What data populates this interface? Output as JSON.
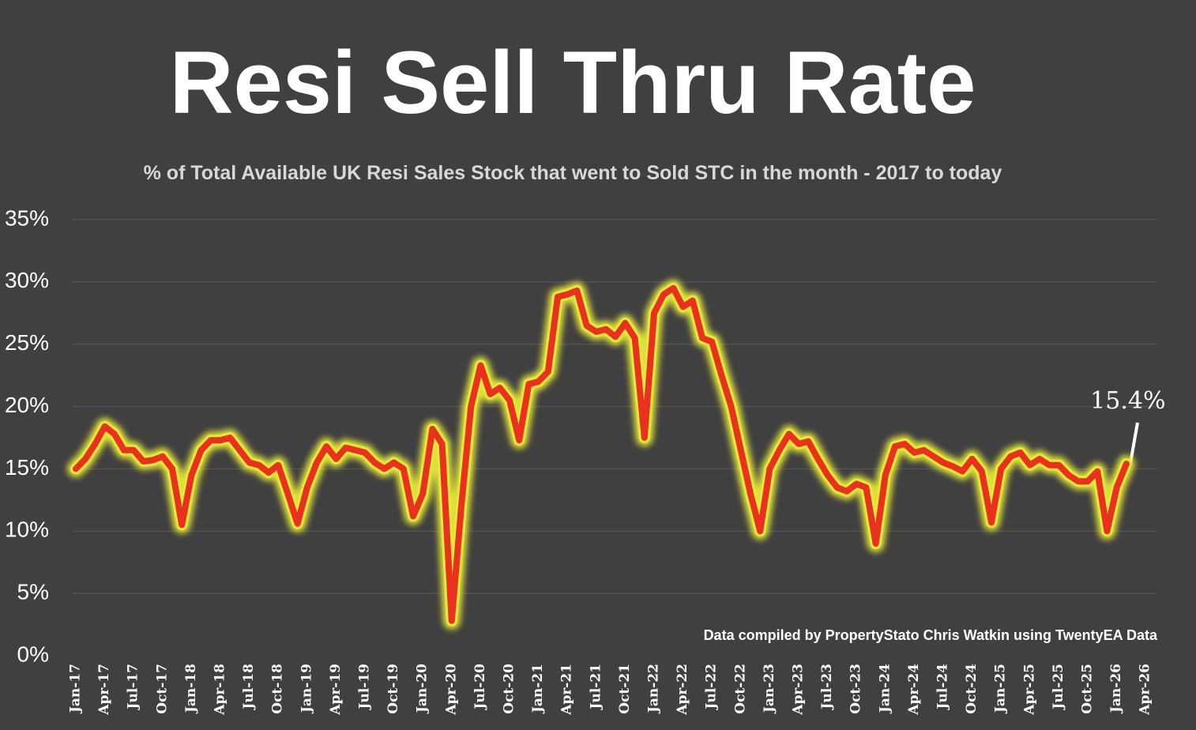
{
  "chart_data": {
    "type": "line",
    "title": "Resi Sell Thru Rate",
    "subtitle": "% of Total Available UK Resi Sales Stock that went to Sold STC in the month - 2017 to today",
    "source": "Data compiled by PropertyStato Chris Watkin using TwentyEA Data",
    "categories": [
      "Jan-17",
      null,
      null,
      "Apr-17",
      null,
      null,
      "Jul-17",
      null,
      null,
      "Oct-17",
      null,
      null,
      "Jan-18",
      null,
      null,
      "Apr-18",
      null,
      null,
      "Jul-18",
      null,
      null,
      "Oct-18",
      null,
      null,
      "Jan-19",
      null,
      null,
      "Apr-19",
      null,
      null,
      "Jul-19",
      null,
      null,
      "Oct-19",
      null,
      null,
      "Jan-20",
      null,
      null,
      "Apr-20",
      null,
      null,
      "Jul-20",
      null,
      null,
      "Oct-20",
      null,
      null,
      "Jan-21",
      null,
      null,
      "Apr-21",
      null,
      null,
      "Jul-21",
      null,
      null,
      "Oct-21",
      null,
      null,
      "Jan-22",
      null,
      null,
      "Apr-22",
      null,
      null,
      "Jul-22",
      null,
      null,
      "Oct-22",
      null,
      null,
      "Jan-23",
      null,
      null,
      "Apr-23",
      null,
      null,
      "Jul-23",
      null,
      null,
      "Oct-23",
      null,
      null,
      "Jan-24",
      null,
      null,
      "Apr-24",
      null,
      null,
      "Jul-24",
      null,
      null,
      "Oct-24",
      null,
      null,
      "Jan-25",
      null,
      null,
      "Apr-25",
      null,
      null,
      "Jul-25",
      null,
      null,
      "Oct-25",
      null,
      null,
      "Jan-26",
      null,
      null,
      "Apr-26"
    ],
    "series": [
      {
        "name": "Sell thru rate",
        "color": "#e8321e",
        "glow_color": "#e6e83a",
        "values": [
          15.0,
          15.8,
          17.0,
          18.4,
          17.8,
          16.5,
          16.5,
          15.6,
          15.7,
          16.0,
          15.0,
          10.5,
          14.5,
          16.5,
          17.3,
          17.3,
          17.5,
          16.5,
          15.5,
          15.3,
          14.7,
          15.3,
          13.0,
          10.6,
          13.5,
          15.5,
          16.8,
          15.8,
          16.7,
          16.5,
          16.3,
          15.5,
          15.0,
          15.5,
          15.0,
          11.2,
          13.0,
          18.2,
          17.0,
          2.8,
          12.0,
          20.0,
          23.3,
          21.0,
          21.5,
          20.5,
          17.3,
          21.8,
          22.0,
          22.8,
          28.8,
          29.0,
          29.3,
          26.5,
          26.0,
          26.2,
          25.6,
          26.7,
          25.5,
          17.5,
          27.5,
          29.0,
          29.5,
          28.0,
          28.5,
          25.5,
          25.2,
          22.5,
          20.0,
          16.5,
          13.0,
          10.0,
          15.0,
          16.5,
          17.8,
          17.0,
          17.2,
          15.8,
          14.5,
          13.5,
          13.2,
          13.8,
          13.5,
          9.0,
          14.5,
          16.8,
          17.0,
          16.3,
          16.5,
          16.0,
          15.5,
          15.2,
          14.8,
          15.8,
          14.8,
          10.7,
          15.0,
          16.0,
          16.3,
          15.3,
          15.8,
          15.3,
          15.3,
          14.5,
          14.0,
          14.0,
          14.8,
          10.0,
          13.5,
          15.4,
          null,
          null
        ],
        "value_labels": [
          null,
          null,
          null,
          null,
          null,
          null,
          null,
          null,
          null,
          null,
          null,
          null,
          null,
          null,
          null,
          null,
          null,
          null,
          null,
          null,
          null,
          null,
          null,
          null,
          null,
          null,
          null,
          null,
          null,
          null,
          null,
          null,
          null,
          null,
          null,
          null,
          null,
          null,
          null,
          null,
          null,
          null,
          null,
          null,
          null,
          null,
          null,
          null,
          null,
          null,
          null,
          null,
          null,
          null,
          null,
          null,
          null,
          null,
          null,
          null,
          null,
          null,
          null,
          null,
          null,
          null,
          null,
          null,
          null,
          null,
          null,
          null,
          null,
          null,
          null,
          null,
          null,
          null,
          null,
          null,
          null,
          null,
          null,
          null,
          null,
          null,
          null,
          null,
          null,
          null,
          null,
          null,
          null,
          null,
          null,
          null,
          null,
          null,
          null,
          null,
          null,
          null,
          null,
          null,
          null,
          null,
          null,
          null,
          null,
          "15.4%",
          null,
          null
        ]
      }
    ],
    "ylim": [
      0,
      35
    ],
    "yticks": [
      {
        "value": 0,
        "label": "0%"
      },
      {
        "value": 5,
        "label": "5%"
      },
      {
        "value": 10,
        "label": "10%"
      },
      {
        "value": 15,
        "label": "15%"
      },
      {
        "value": 20,
        "label": "20%"
      },
      {
        "value": 25,
        "label": "25%"
      },
      {
        "value": 30,
        "label": "30%"
      },
      {
        "value": 35,
        "label": "35%"
      }
    ],
    "grid": true
  }
}
